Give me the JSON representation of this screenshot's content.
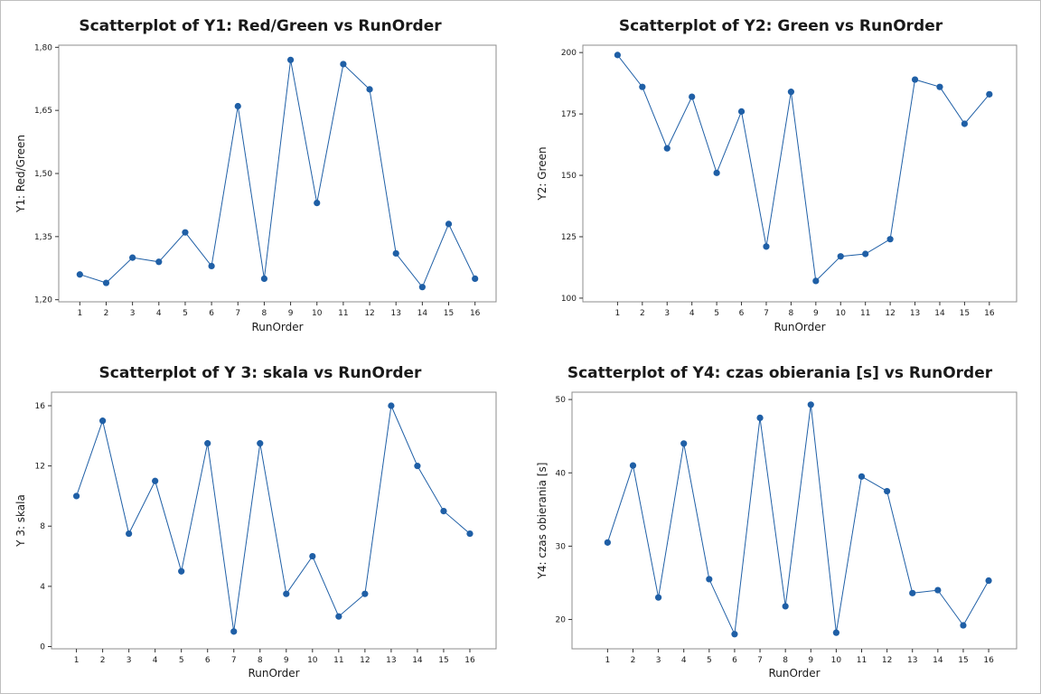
{
  "colors": {
    "series": "#1f5fa6",
    "frame": "#8c8c8c",
    "background": "#ffffff"
  },
  "chart_data": [
    {
      "type": "line",
      "title": "Scatterplot of Y1: Red/Green vs RunOrder",
      "xlabel": "RunOrder",
      "ylabel": "Y1: Red/Green",
      "x": [
        1,
        2,
        3,
        4,
        5,
        6,
        7,
        8,
        9,
        10,
        11,
        12,
        13,
        14,
        15,
        16
      ],
      "y": [
        1.26,
        1.24,
        1.3,
        1.29,
        1.36,
        1.28,
        1.66,
        1.25,
        1.77,
        1.43,
        1.76,
        1.7,
        1.31,
        1.23,
        1.38,
        1.25
      ],
      "xlim": [
        0.2,
        16.8
      ],
      "ylim": [
        1.195,
        1.805
      ],
      "yticks": [
        1.2,
        1.35,
        1.5,
        1.65,
        1.8
      ],
      "ytick_labels": [
        "1,20",
        "1,35",
        "1,50",
        "1,65",
        "1,80"
      ],
      "xticks": [
        "1",
        "2",
        "3",
        "4",
        "5",
        "6",
        "7",
        "8",
        "9",
        "10",
        "11",
        "12",
        "13",
        "14",
        "15",
        "16"
      ],
      "grid": false
    },
    {
      "type": "line",
      "title": "Scatterplot of Y2: Green vs RunOrder",
      "xlabel": "RunOrder",
      "ylabel": "Y2: Green",
      "x": [
        1,
        2,
        3,
        4,
        5,
        6,
        7,
        8,
        9,
        10,
        11,
        12,
        13,
        14,
        15,
        16
      ],
      "y": [
        199,
        186,
        161,
        182,
        151,
        176,
        121,
        184,
        107,
        117,
        118,
        124,
        189,
        186,
        171,
        183
      ],
      "xlim": [
        -0.4,
        17.1
      ],
      "ylim": [
        98.5,
        203
      ],
      "yticks": [
        100,
        125,
        150,
        175,
        200
      ],
      "ytick_labels": [
        "100",
        "125",
        "150",
        "175",
        "200"
      ],
      "xticks": [
        "1",
        "2",
        "3",
        "4",
        "5",
        "6",
        "7",
        "8",
        "9",
        "10",
        "11",
        "12",
        "13",
        "14",
        "15",
        "16"
      ],
      "grid": false
    },
    {
      "type": "line",
      "title": "Scatterplot of Y 3: skala vs RunOrder",
      "xlabel": "RunOrder",
      "ylabel": "Y 3: skala",
      "x": [
        1,
        2,
        3,
        4,
        5,
        6,
        7,
        8,
        9,
        10,
        11,
        12,
        13,
        14,
        15,
        16
      ],
      "y": [
        10,
        15,
        7.5,
        11,
        5,
        13.5,
        1,
        13.5,
        3.5,
        6,
        2,
        3.5,
        16,
        12,
        9,
        7.5
      ],
      "xlim": [
        0.05,
        17.0
      ],
      "ylim": [
        -0.15,
        16.9
      ],
      "yticks": [
        0,
        4,
        8,
        12,
        16
      ],
      "ytick_labels": [
        "0",
        "4",
        "8",
        "12",
        "16"
      ],
      "xticks": [
        "1",
        "2",
        "3",
        "4",
        "5",
        "6",
        "7",
        "8",
        "9",
        "10",
        "11",
        "12",
        "13",
        "14",
        "15",
        "16"
      ],
      "grid": false
    },
    {
      "type": "line",
      "title": "Scatterplot of Y4: czas obierania [s] vs RunOrder",
      "xlabel": "RunOrder",
      "ylabel": "Y4: czas obierania [s]",
      "x": [
        1,
        2,
        3,
        4,
        5,
        6,
        7,
        8,
        9,
        10,
        11,
        12,
        13,
        14,
        15,
        16
      ],
      "y": [
        30.5,
        41,
        23,
        44,
        25.5,
        18,
        47.5,
        21.8,
        49.3,
        18.2,
        39.5,
        37.5,
        23.6,
        24,
        19.2,
        25.3
      ],
      "xlim": [
        -0.4,
        17.1
      ],
      "ylim": [
        16,
        51
      ],
      "yticks": [
        20,
        30,
        40,
        50
      ],
      "ytick_labels": [
        "20",
        "30",
        "40",
        "50"
      ],
      "xticks": [
        "1",
        "2",
        "3",
        "4",
        "5",
        "6",
        "7",
        "8",
        "9",
        "10",
        "11",
        "12",
        "13",
        "14",
        "15",
        "16"
      ],
      "grid": false
    }
  ]
}
